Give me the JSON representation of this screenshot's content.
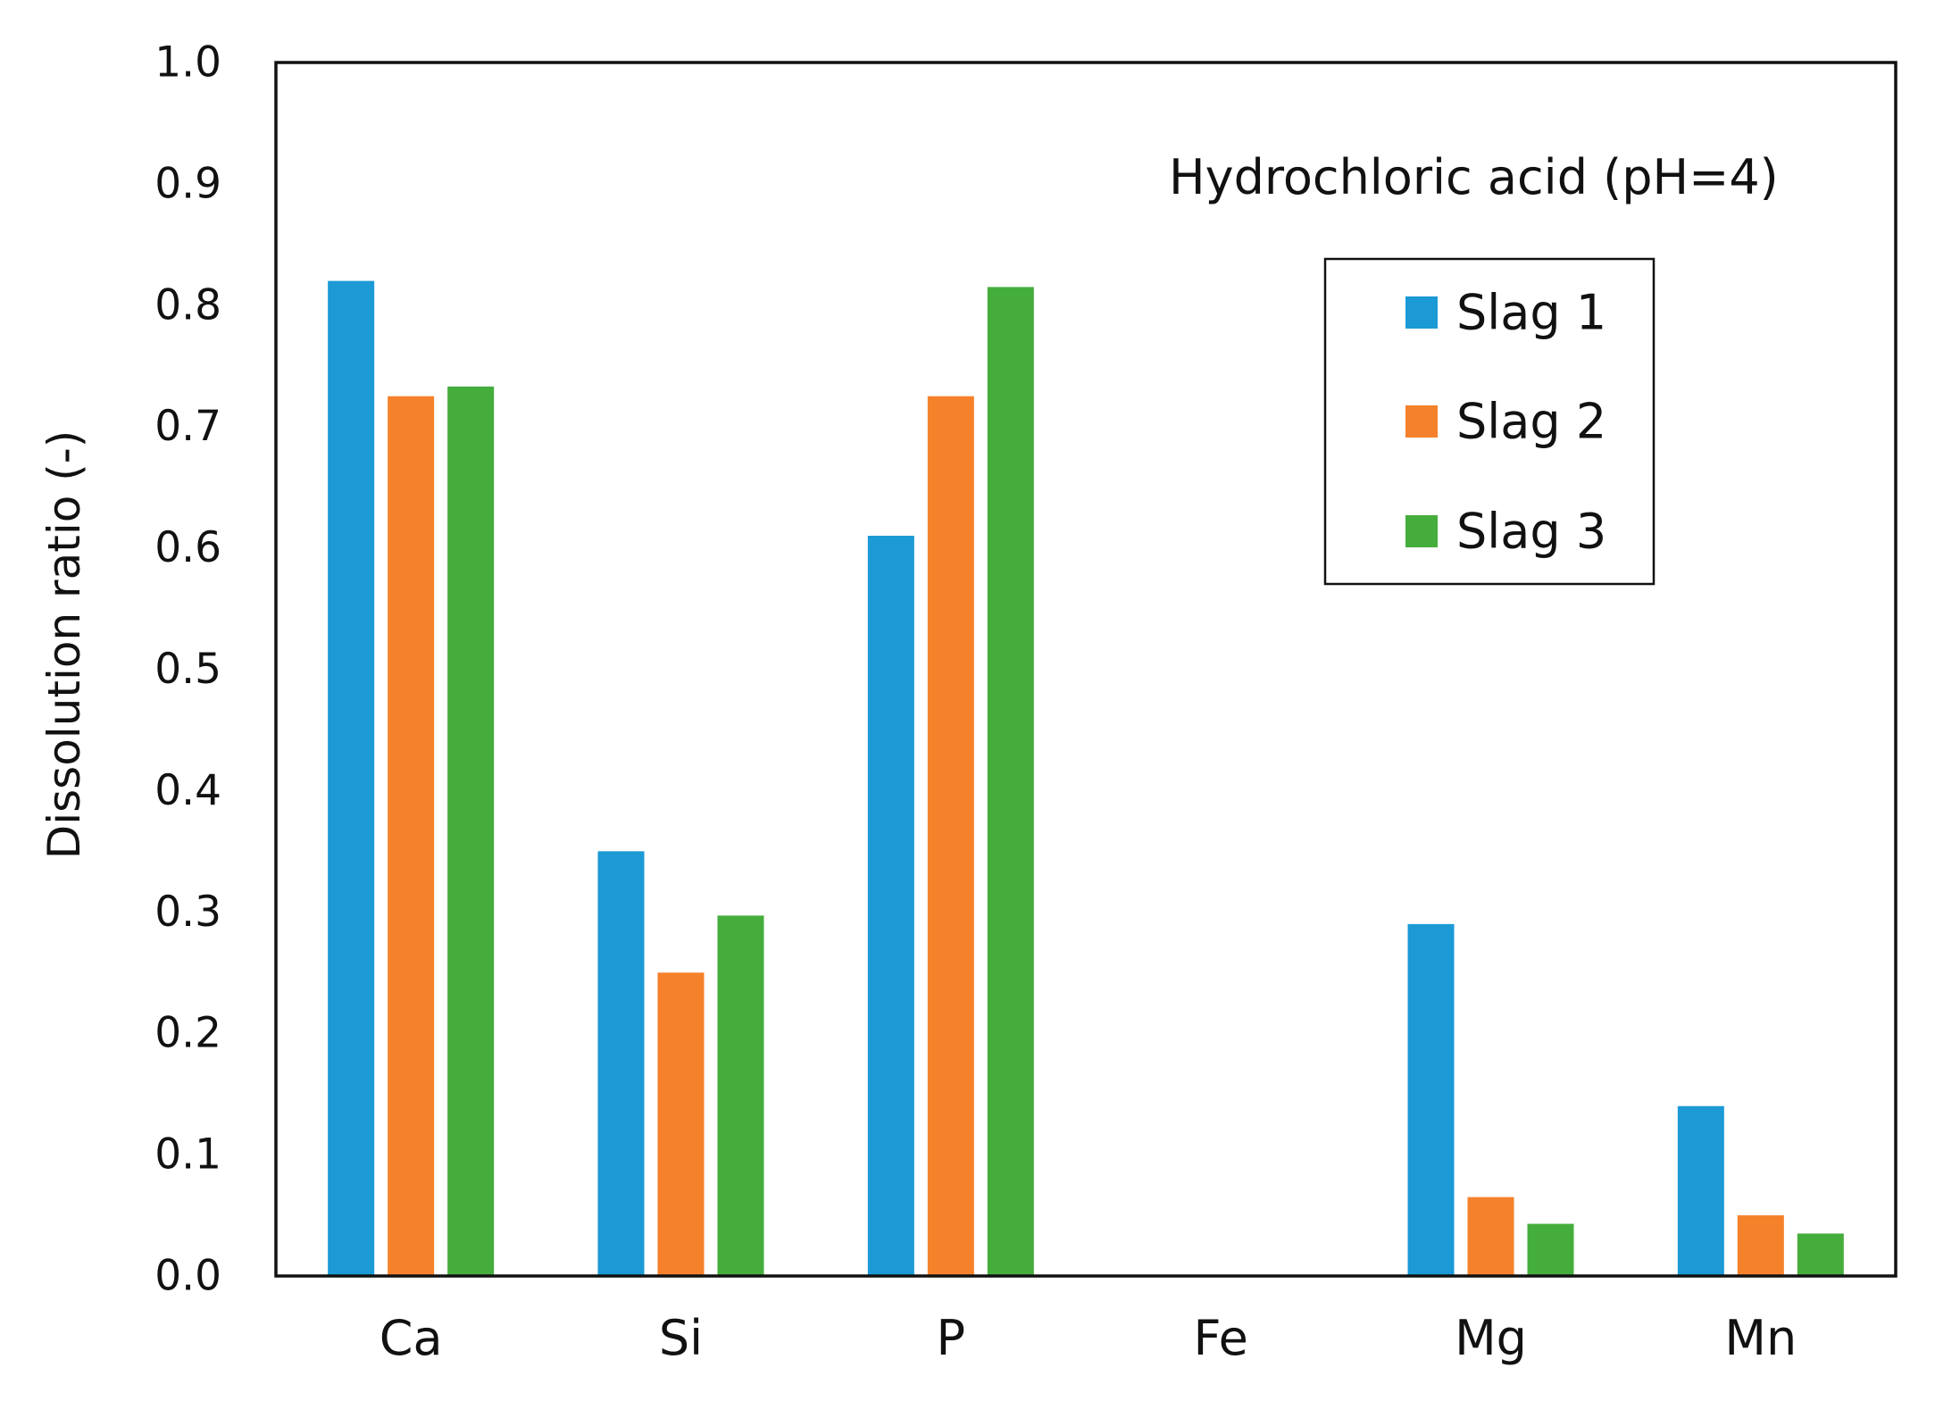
{
  "chart_data": {
    "type": "bar",
    "title": "",
    "xlabel": "",
    "ylabel": "Dissolution ratio (-)",
    "ylim": [
      0,
      1.0
    ],
    "yticks": [
      "0.0",
      "0.1",
      "0.2",
      "0.3",
      "0.4",
      "0.5",
      "0.6",
      "0.7",
      "0.8",
      "0.9",
      "1.0"
    ],
    "grid": false,
    "annotation": "Hydrochloric acid (pH=4)",
    "legend_position": "upper-right",
    "categories": [
      "Ca",
      "Si",
      "P",
      "Fe",
      "Mg",
      "Mn"
    ],
    "series": [
      {
        "name": "Slag 1",
        "color": "#1b9ad6",
        "values": [
          0.82,
          0.35,
          0.61,
          0.0,
          0.29,
          0.14
        ]
      },
      {
        "name": "Slag 2",
        "color": "#f5812a",
        "values": [
          0.725,
          0.25,
          0.725,
          0.0,
          0.065,
          0.05
        ]
      },
      {
        "name": "Slag 3",
        "color": "#45ad3c",
        "values": [
          0.733,
          0.297,
          0.815,
          0.0,
          0.043,
          0.035
        ]
      }
    ]
  }
}
